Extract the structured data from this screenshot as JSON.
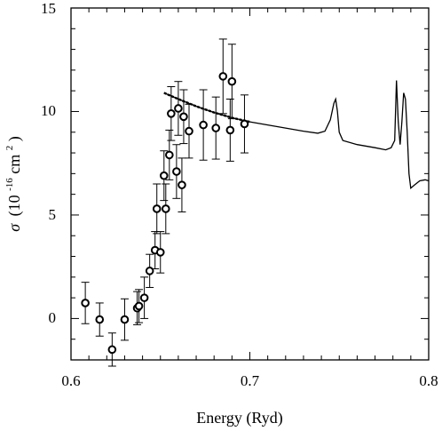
{
  "chart_data": {
    "type": "scatter",
    "xlabel": "Energy (Ryd)",
    "ylabel_symbol": "σ",
    "ylabel_open": "(10",
    "ylabel_exp": "-16",
    "ylabel_unit": " cm",
    "ylabel_unit_exp": "2",
    "ylabel_close": ")",
    "xlim": [
      0.6,
      0.8
    ],
    "ylim": [
      -2,
      15
    ],
    "x_ticks": [
      0.6,
      0.7,
      0.8
    ],
    "x_tick_labels": [
      "0.6",
      "0.7",
      "0.8"
    ],
    "y_ticks": [
      0,
      5,
      10,
      15
    ],
    "y_tick_labels": [
      "0",
      "5",
      "10",
      "15"
    ],
    "grid": false,
    "series": [
      {
        "kind": "measurement",
        "points": [
          {
            "x": 0.608,
            "y": 0.75,
            "err": 1.0
          },
          {
            "x": 0.616,
            "y": -0.05,
            "err": 0.8
          },
          {
            "x": 0.623,
            "y": -1.5,
            "err": 0.8
          },
          {
            "x": 0.63,
            "y": -0.05,
            "err": 1.0
          },
          {
            "x": 0.637,
            "y": 0.5,
            "err": 0.8
          },
          {
            "x": 0.638,
            "y": 0.6,
            "err": 0.8
          },
          {
            "x": 0.641,
            "y": 1.0,
            "err": 1.0
          },
          {
            "x": 0.644,
            "y": 2.3,
            "err": 0.8
          },
          {
            "x": 0.647,
            "y": 3.3,
            "err": 0.9
          },
          {
            "x": 0.648,
            "y": 5.3,
            "err": 1.2
          },
          {
            "x": 0.65,
            "y": 3.2,
            "err": 1.0
          },
          {
            "x": 0.652,
            "y": 6.9,
            "err": 1.2
          },
          {
            "x": 0.653,
            "y": 5.3,
            "err": 1.2
          },
          {
            "x": 0.655,
            "y": 7.9,
            "err": 1.2
          },
          {
            "x": 0.656,
            "y": 9.9,
            "err": 1.3
          },
          {
            "x": 0.659,
            "y": 7.1,
            "err": 1.3
          },
          {
            "x": 0.66,
            "y": 10.15,
            "err": 1.3
          },
          {
            "x": 0.662,
            "y": 6.45,
            "err": 1.3
          },
          {
            "x": 0.663,
            "y": 9.75,
            "err": 1.3
          },
          {
            "x": 0.666,
            "y": 9.05,
            "err": 1.3
          },
          {
            "x": 0.674,
            "y": 9.35,
            "err": 1.7
          },
          {
            "x": 0.681,
            "y": 9.2,
            "err": 1.5
          },
          {
            "x": 0.685,
            "y": 11.7,
            "err": 1.8
          },
          {
            "x": 0.689,
            "y": 9.1,
            "err": 1.5
          },
          {
            "x": 0.69,
            "y": 11.45,
            "err": 1.8
          },
          {
            "x": 0.697,
            "y": 9.4,
            "err": 1.4
          }
        ]
      },
      {
        "kind": "theory",
        "points": [
          [
            0.652,
            10.9
          ],
          [
            0.66,
            10.6
          ],
          [
            0.67,
            10.25
          ],
          [
            0.68,
            9.95
          ],
          [
            0.69,
            9.7
          ],
          [
            0.7,
            9.5
          ],
          [
            0.71,
            9.35
          ],
          [
            0.72,
            9.2
          ],
          [
            0.73,
            9.05
          ],
          [
            0.738,
            8.95
          ],
          [
            0.742,
            9.05
          ],
          [
            0.745,
            9.6
          ],
          [
            0.747,
            10.4
          ],
          [
            0.748,
            10.6
          ],
          [
            0.749,
            10.0
          ],
          [
            0.75,
            9.0
          ],
          [
            0.752,
            8.6
          ],
          [
            0.76,
            8.4
          ],
          [
            0.77,
            8.25
          ],
          [
            0.776,
            8.15
          ],
          [
            0.779,
            8.25
          ],
          [
            0.781,
            8.6
          ],
          [
            0.782,
            11.5
          ],
          [
            0.783,
            9.5
          ],
          [
            0.784,
            8.4
          ],
          [
            0.785,
            9.5
          ],
          [
            0.786,
            10.9
          ],
          [
            0.787,
            10.6
          ],
          [
            0.788,
            9.0
          ],
          [
            0.789,
            7.0
          ],
          [
            0.79,
            6.3
          ],
          [
            0.792,
            6.45
          ],
          [
            0.795,
            6.65
          ],
          [
            0.798,
            6.7
          ],
          [
            0.8,
            6.65
          ]
        ]
      }
    ]
  }
}
